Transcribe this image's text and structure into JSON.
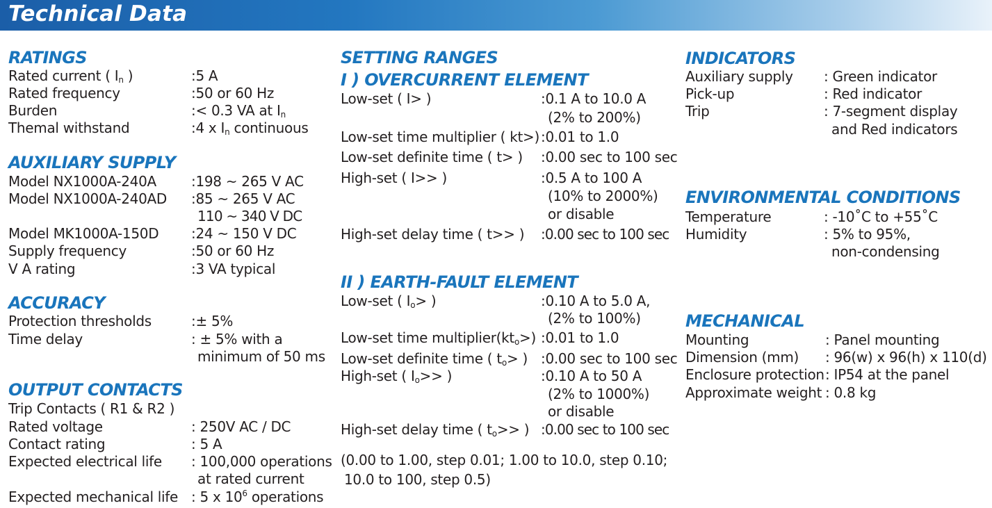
{
  "page": {
    "title": "Technical Data"
  },
  "ratings": {
    "heading": "RATINGS",
    "rated_current_label": "Rated current ( I",
    "rated_current_label_sub": "n",
    "rated_current_label_end": " )",
    "rated_current_value": ":5 A",
    "rated_frequency_label": "Rated frequency",
    "rated_frequency_value": ":50 or 60 Hz",
    "burden_label": "Burden",
    "burden_value": ":< 0.3 VA at I",
    "burden_value_sub": "n",
    "thermal_label": "Themal withstand",
    "thermal_value": ":4 x I",
    "thermal_value_sub": "n",
    "thermal_value_end": " continuous"
  },
  "auxiliary_supply": {
    "heading": "AUXILIARY SUPPLY",
    "rows": [
      {
        "label": "Model NX1000A-240A",
        "value": ":198 ~ 265 V AC"
      },
      {
        "label": "Model NX1000A-240AD",
        "value": ":85 ~ 265 V AC",
        "value2": "110 ~ 340 V DC"
      },
      {
        "label": "Model MK1000A-150D",
        "value": ":24 ~ 150 V DC"
      },
      {
        "label": "Supply frequency",
        "value": ":50 or 60 Hz"
      },
      {
        "label": "V A rating",
        "value": ":3 VA typical"
      }
    ]
  },
  "accuracy": {
    "heading": "ACCURACY",
    "rows": [
      {
        "label": "Protection thresholds",
        "value": ":± 5%"
      },
      {
        "label": "Time delay",
        "value": ": ± 5% with a",
        "value2": "minimum of 50 ms"
      }
    ]
  },
  "output_contacts": {
    "heading": "OUTPUT CONTACTS",
    "trip_contacts": "Trip Contacts ( R1 & R2 )",
    "rows": [
      {
        "label": "Rated voltage",
        "value": ": 250V AC / DC"
      },
      {
        "label": "Contact rating",
        "value": ": 5 A"
      },
      {
        "label": "Expected electrical life",
        "value": ": 100,000 operations",
        "value2": "at rated current"
      }
    ],
    "mech_life_label": "Expected mechanical life",
    "mech_life_value": ": 5 x 10",
    "mech_life_value_sup": "6",
    "mech_life_value_end": " operations"
  },
  "setting_ranges": {
    "heading": "SETTING RANGES",
    "overcurrent": {
      "heading": "I ) OVERCURRENT ELEMENT",
      "rows": [
        {
          "label": "Low-set ( I> )",
          "value": ":0.1 A to 10.0 A",
          "value2": "(2% to 200%)"
        },
        {
          "label": "Low-set time multiplier ( kt>)",
          "value": ":0.01 to 1.0"
        },
        {
          "label": "Low-set definite time ( t> )",
          "value": ":0.00 sec to 100 sec"
        },
        {
          "label": "High-set ( I>> )",
          "value": ":0.5 A to 100 A",
          "value2": "(10% to 2000%)",
          "value3": "or disable"
        },
        {
          "label": "High-set delay time ( t>> )",
          "value": ":0.00 sec to 100 sec"
        }
      ]
    },
    "earth_fault": {
      "heading": "II ) EARTH-FAULT ELEMENT",
      "low_set_label": "Low-set ( I",
      "low_set_sub": "o",
      "low_set_end": "> )",
      "low_set_value": ":0.10 A to 5.0 A,",
      "low_set_value2": "(2% to 100%)",
      "tm_label": "Low-set time multiplier(kt",
      "tm_sub": "o",
      "tm_end": ">)",
      "tm_value": ":0.01 to 1.0",
      "dt_label": "Low-set definite time ( t",
      "dt_sub": "o",
      "dt_end": "> )",
      "dt_value": ":0.00 sec to 100 sec",
      "hs_label": "High-set ( I",
      "hs_sub": "o",
      "hs_end": ">> )",
      "hs_value": ":0.10 A to 50 A",
      "hs_value2": "(2% to 1000%)",
      "hs_value3": "or disable",
      "hd_label": "High-set delay time ( t",
      "hd_sub": "o",
      "hd_end": ">> )",
      "hd_value": ":0.00 sec to 100 sec"
    },
    "note_line1": "(0.00 to 1.00, step 0.01; 1.00 to 10.0, step 0.10;",
    "note_line2": "10.0 to 100, step 0.5)"
  },
  "indicators": {
    "heading": "INDICATORS",
    "rows": [
      {
        "label": "Auxiliary supply",
        "value": ": Green indicator"
      },
      {
        "label": "Pick-up",
        "value": ": Red indicator"
      },
      {
        "label": "Trip",
        "value": ": 7-segment display",
        "value2": "and Red indicators"
      }
    ]
  },
  "environmental": {
    "heading": "ENVIRONMENTAL CONDITIONS",
    "rows": [
      {
        "label": "Temperature",
        "value": ": -10˚C to +55˚C"
      },
      {
        "label": "Humidity",
        "value": ": 5% to 95%,",
        "value2": "non-condensing"
      }
    ]
  },
  "mechanical": {
    "heading": "MECHANICAL",
    "rows": [
      {
        "label": "Mounting",
        "value": ": Panel mounting"
      },
      {
        "label": "Dimension (mm)",
        "value": ": 96(w) x 96(h) x 110(d)"
      },
      {
        "label": "Enclosure protection",
        "value": ": IP54 at the panel"
      },
      {
        "label": "Approximate weight",
        "value": ": 0.8 kg"
      }
    ]
  }
}
